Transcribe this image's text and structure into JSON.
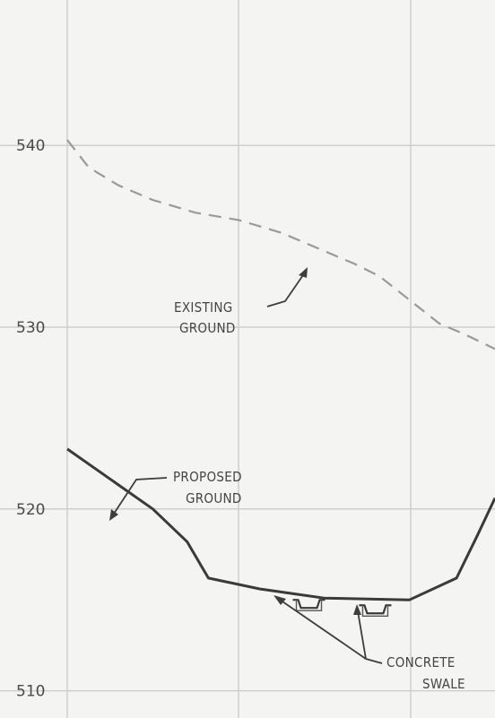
{
  "chart_data": {
    "type": "line",
    "title": "",
    "xlabel": "",
    "ylabel": "",
    "ylim": [
      508.5,
      548
    ],
    "yticks": [
      510,
      520,
      530,
      540
    ],
    "grid": true,
    "series": [
      {
        "name": "EXISTING GROUND",
        "style": "dashed",
        "color": "#9a9a9a",
        "points": [
          [
            0,
            540.3
          ],
          [
            0.05,
            538.8
          ],
          [
            0.12,
            537.8
          ],
          [
            0.2,
            537.0
          ],
          [
            0.3,
            536.3
          ],
          [
            0.4,
            535.9
          ],
          [
            0.5,
            535.2
          ],
          [
            0.57,
            534.5
          ],
          [
            0.62,
            534.0
          ],
          [
            0.67,
            533.5
          ],
          [
            0.73,
            532.8
          ],
          [
            0.8,
            531.5
          ],
          [
            0.87,
            530.2
          ],
          [
            0.93,
            529.6
          ],
          [
            1.0,
            528.8
          ]
        ]
      },
      {
        "name": "PROPOSED GROUND",
        "style": "solid",
        "color": "#3a3a3a",
        "points": [
          [
            0,
            523.3
          ],
          [
            0.2,
            520.0
          ],
          [
            0.28,
            518.2
          ],
          [
            0.33,
            516.2
          ],
          [
            0.45,
            515.6
          ],
          [
            0.54,
            515.3
          ],
          [
            0.6,
            515.1
          ],
          [
            0.8,
            515.0
          ],
          [
            0.91,
            516.2
          ],
          [
            0.96,
            518.6
          ],
          [
            1.0,
            520.6
          ]
        ]
      }
    ],
    "swales": [
      {
        "x": 0.565,
        "y": 515.0
      },
      {
        "x": 0.72,
        "y": 514.7
      }
    ],
    "annotations": [
      {
        "lines": [
          "EXISTING",
          "GROUND"
        ],
        "target": "EXISTING GROUND"
      },
      {
        "lines": [
          "PROPOSED",
          "GROUND"
        ],
        "target": "PROPOSED GROUND"
      },
      {
        "lines": [
          "CONCRETE",
          "SWALE"
        ],
        "target": "swales"
      }
    ]
  }
}
